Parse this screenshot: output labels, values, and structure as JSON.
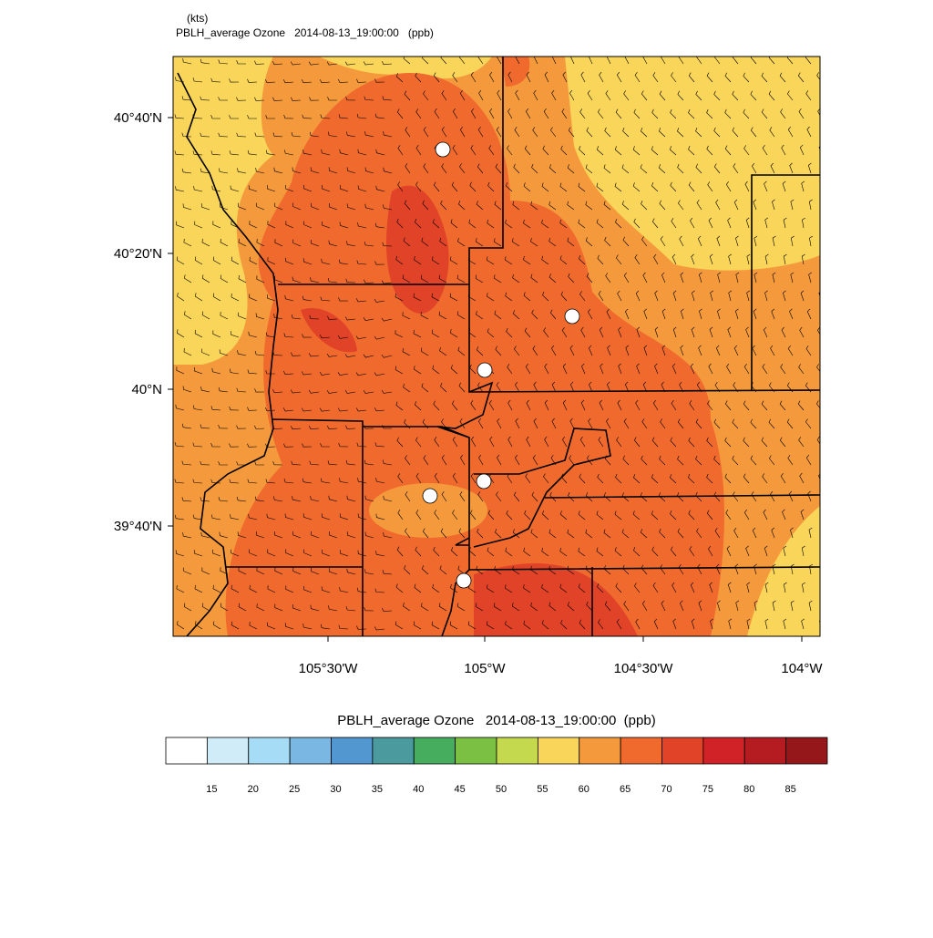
{
  "header": {
    "unit": "(kts)",
    "title": "PBLH_average Ozone   2014-08-13_19:00:00   (ppb)"
  },
  "map": {
    "lat_labels": [
      "40°40'N",
      "40°20'N",
      "40°N",
      "39°40'N"
    ],
    "lon_labels": [
      "105°30'W",
      "105°W",
      "104°30'W",
      "104°W"
    ]
  },
  "colorbar": {
    "title": "PBLH_average Ozone   2014-08-13_19:00:00  (ppb)",
    "levels": [
      15,
      20,
      25,
      30,
      35,
      40,
      45,
      50,
      55,
      60,
      65,
      70,
      75,
      80,
      85
    ],
    "colors": [
      "#ffffff",
      "#d0ecf8",
      "#a6dcf5",
      "#7ab8e3",
      "#5397d1",
      "#4a9a9e",
      "#46ad5f",
      "#7bc043",
      "#c5d94e",
      "#f9d55a",
      "#f59a3c",
      "#f06a2e",
      "#e04328",
      "#d12228",
      "#b41c22",
      "#961719"
    ]
  }
}
